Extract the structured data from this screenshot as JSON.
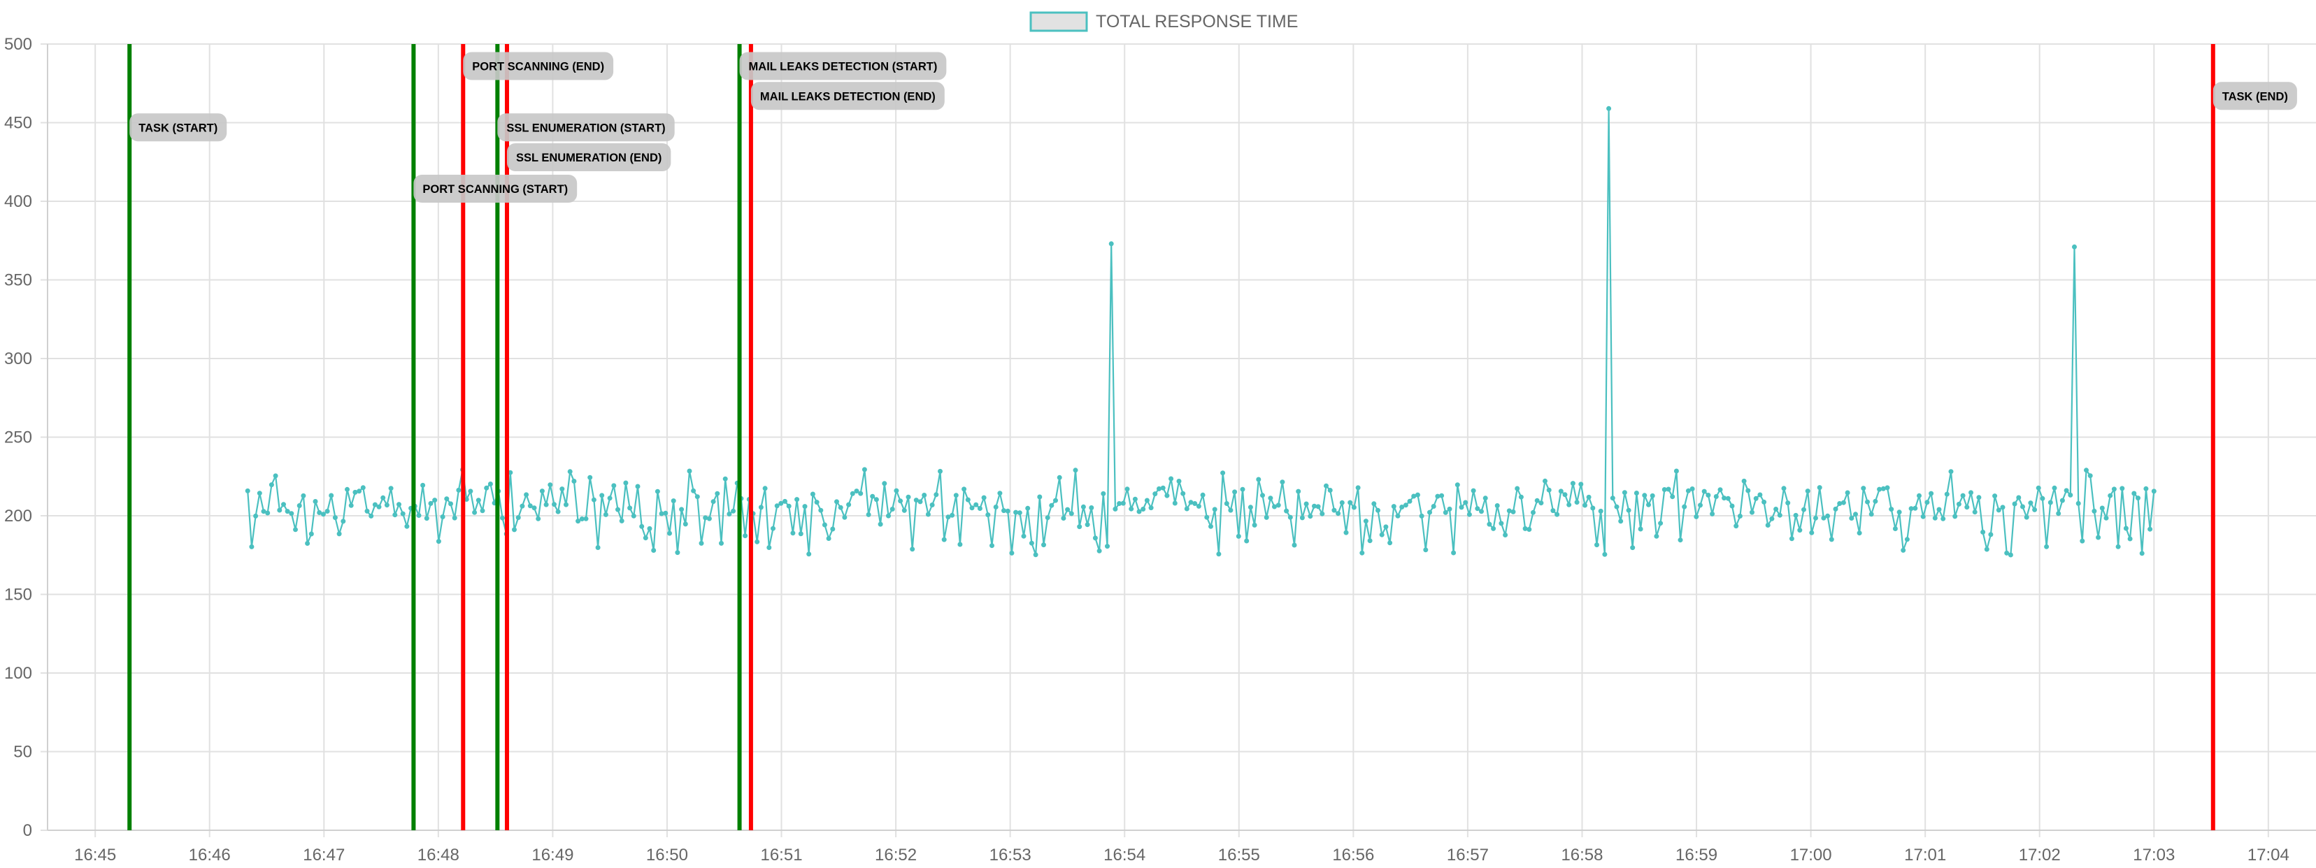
{
  "chart_data": {
    "type": "line",
    "title": "",
    "xlabel": "",
    "ylabel": "",
    "legend": {
      "position": "top-center",
      "entries": [
        "TOTAL RESPONSE TIME"
      ]
    },
    "grid": true,
    "xlim": [
      "16:44:35",
      "17:04:25"
    ],
    "ylim": [
      0,
      500
    ],
    "y_ticks": [
      0,
      50,
      100,
      150,
      200,
      250,
      300,
      350,
      400,
      450,
      500
    ],
    "x_ticks": [
      "16:45",
      "16:46",
      "16:47",
      "16:48",
      "16:49",
      "16:50",
      "16:51",
      "16:52",
      "16:53",
      "16:54",
      "16:55",
      "16:56",
      "16:57",
      "16:58",
      "16:59",
      "17:00",
      "17:01",
      "17:02",
      "17:03",
      "17:04"
    ],
    "series": [
      {
        "name": "TOTAL RESPONSE TIME",
        "color": "#4bc0c0",
        "fill": "#e2e2e2",
        "start_time": "16:46:20",
        "end_time": "17:03:00",
        "sample_count": 480,
        "baseline_range": [
          175,
          230
        ],
        "spikes": [
          {
            "time": "16:53:52",
            "value": 373
          },
          {
            "time": "16:58:13",
            "value": 459
          },
          {
            "time": "17:02:18",
            "value": 371
          }
        ]
      }
    ],
    "annotations": [
      {
        "label": "TASK (START)",
        "time": "16:45:18",
        "kind": "start",
        "color": "#008000",
        "label_value": 447
      },
      {
        "label": "PORT SCANNING (START)",
        "time": "16:47:47",
        "kind": "start",
        "color": "#008000",
        "label_value": 408
      },
      {
        "label": "PORT SCANNING (END)",
        "time": "16:48:13",
        "kind": "end",
        "color": "#ff0000",
        "label_value": 486
      },
      {
        "label": "SSL ENUMERATION (START)",
        "time": "16:48:31",
        "kind": "start",
        "color": "#008000",
        "label_value": 447
      },
      {
        "label": "SSL ENUMERATION (END)",
        "time": "16:48:36",
        "kind": "end",
        "color": "#ff0000",
        "label_value": 428
      },
      {
        "label": "MAIL LEAKS DETECTION (START)",
        "time": "16:50:38",
        "kind": "start",
        "color": "#008000",
        "label_value": 486
      },
      {
        "label": "MAIL LEAKS DETECTION (END)",
        "time": "16:50:44",
        "kind": "end",
        "color": "#ff0000",
        "label_value": 467
      },
      {
        "label": "TASK (END)",
        "time": "17:03:31",
        "kind": "end",
        "color": "#ff0000",
        "label_value": 467
      }
    ]
  }
}
